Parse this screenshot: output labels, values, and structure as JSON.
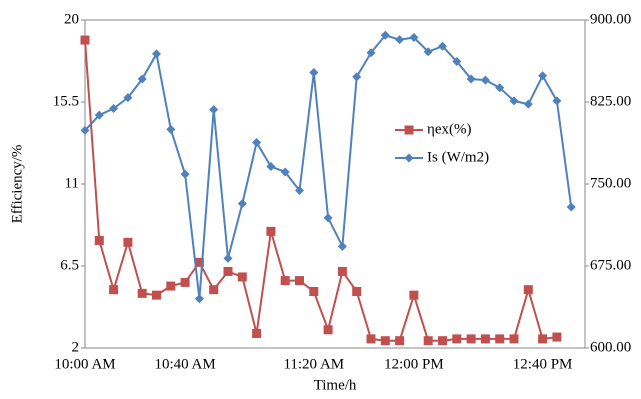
{
  "chart_data": {
    "type": "line",
    "y_label": "Efficiency/%",
    "x_label": "Time/h",
    "categories": [
      "10:00 AM",
      null,
      null,
      null,
      null,
      null,
      null,
      "10:40 AM",
      null,
      null,
      null,
      null,
      null,
      null,
      null,
      null,
      "11:20 AM",
      null,
      null,
      null,
      null,
      null,
      null,
      "12:00 PM",
      null,
      null,
      null,
      null,
      null,
      null,
      null,
      null,
      "12:40 PM",
      null,
      null
    ],
    "ylim": [
      2,
      20
    ],
    "yticks": [
      2,
      6.5,
      11,
      15.5,
      20
    ],
    "y2lim": [
      600,
      900
    ],
    "y2ticks": [
      {
        "value": 600,
        "label": "600.00"
      },
      {
        "value": 675,
        "label": "675.00"
      },
      {
        "value": 750,
        "label": "750.00"
      },
      {
        "value": 825,
        "label": "825.00"
      },
      {
        "value": 900,
        "label": "900.00"
      }
    ],
    "series": [
      {
        "name": "ηex(%)",
        "color": "#c0504d",
        "marker": "square",
        "values": [
          18.9,
          7.9,
          5.2,
          7.8,
          5.0,
          4.9,
          5.4,
          5.6,
          6.7,
          5.2,
          6.2,
          5.9,
          2.8,
          8.4,
          5.7,
          5.7,
          5.1,
          3.0,
          6.2,
          5.1,
          2.5,
          2.4,
          2.4,
          4.9,
          2.4,
          2.4,
          2.5,
          2.5,
          2.5,
          2.5,
          2.5,
          5.2,
          2.5,
          2.6,
          null
        ]
      },
      {
        "name": "Is (W/m2)",
        "color": "#4f81bd",
        "marker": "diamond",
        "axis": "y2",
        "values": [
          799,
          813,
          819,
          829,
          846,
          869,
          800,
          759,
          645,
          818,
          682,
          732,
          788,
          766,
          761,
          744,
          852,
          719,
          693,
          848,
          870,
          886,
          882,
          884,
          871,
          876,
          862,
          846,
          845,
          838,
          826,
          823,
          849,
          826,
          729
        ]
      }
    ]
  }
}
